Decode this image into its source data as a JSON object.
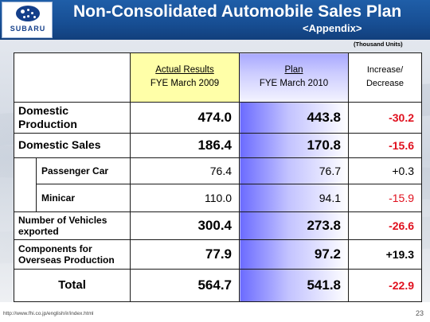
{
  "header": {
    "logo_text": "SUBARU",
    "title": "Non-Consolidated Automobile Sales Plan",
    "subtitle": "<Appendix>"
  },
  "units_note": "(Thousand Units)",
  "columns": {
    "actual_line1": "Actual Results",
    "actual_line2": "FYE March 2009",
    "plan_line1": "Plan",
    "plan_line2": "FYE March 2010",
    "increase_line1": "Increase/",
    "increase_line2": "Decrease"
  },
  "rows": {
    "domestic_production": {
      "label_line1": "Domestic",
      "label_line2": "Production",
      "actual": "474.0",
      "plan": "443.8",
      "change": "-30.2"
    },
    "domestic_sales": {
      "label": "Domestic Sales",
      "actual": "186.4",
      "plan": "170.8",
      "change": "-15.6"
    },
    "passenger_car": {
      "label": "Passenger Car",
      "actual": "76.4",
      "plan": "76.7",
      "change": "+0.3"
    },
    "minicar": {
      "label": "Minicar",
      "actual": "110.0",
      "plan": "94.1",
      "change": "-15.9"
    },
    "vehicles_exported": {
      "label_line1": "Number of Vehicles",
      "label_line2": "exported",
      "actual": "300.4",
      "plan": "273.8",
      "change": "-26.6"
    },
    "components": {
      "label_line1": "Components for",
      "label_line2": "Overseas Production",
      "actual": "77.9",
      "plan": "97.2",
      "change": "+19.3"
    },
    "total": {
      "label": "Total",
      "actual": "564.7",
      "plan": "541.8",
      "change": "-22.9"
    }
  },
  "footer": {
    "url": "http://www.fhi.co.jp/english/ir/index.html",
    "page_number": "23"
  },
  "colors": {
    "header_blue": "#174e93",
    "actual_header_yellow": "#ffffa8",
    "plan_blue": "#6b6bff",
    "negative_red": "#e0101e"
  }
}
